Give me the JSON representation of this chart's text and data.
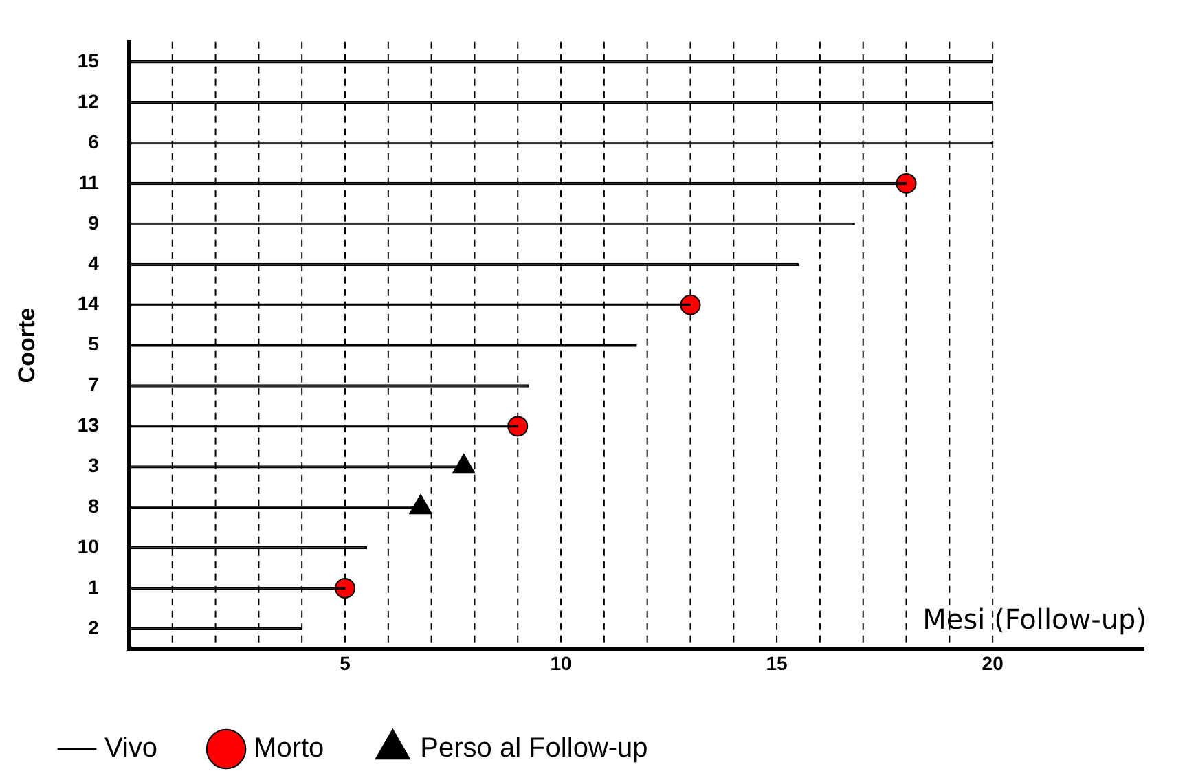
{
  "chart_data": {
    "type": "bar",
    "orientation": "horizontal",
    "ylabel": "Coorte",
    "xlabel": "Mesi (Follow-up)",
    "categories": [
      "15",
      "12",
      "6",
      "11",
      "9",
      "4",
      "14",
      "5",
      "7",
      "13",
      "3",
      "8",
      "10",
      "1",
      "2"
    ],
    "series": [
      {
        "name": "Vivo",
        "type": "bar",
        "color": "#000000",
        "values": [
          20,
          20,
          20,
          18,
          16.8,
          15.5,
          13,
          11.75,
          9.25,
          9,
          7.75,
          6.75,
          5.5,
          5,
          4
        ]
      },
      {
        "name": "Morto",
        "type": "scatter",
        "marker": "circle",
        "color": "#ff0000",
        "values": [
          null,
          null,
          null,
          18,
          null,
          null,
          13,
          null,
          null,
          9,
          null,
          null,
          null,
          5,
          null
        ]
      },
      {
        "name": "Perso al Follow-up",
        "type": "scatter",
        "marker": "triangle",
        "color": "#000000",
        "values": [
          null,
          null,
          null,
          null,
          null,
          null,
          null,
          null,
          null,
          null,
          7.75,
          6.75,
          null,
          null,
          null
        ]
      }
    ],
    "xlim": [
      0,
      23.5
    ],
    "xticks": [
      {
        "value": 1,
        "label": null
      },
      {
        "value": 2,
        "label": null
      },
      {
        "value": 3,
        "label": null
      },
      {
        "value": 4,
        "label": null
      },
      5,
      {
        "value": 6,
        "label": null
      },
      {
        "value": 7,
        "label": null
      },
      {
        "value": 8,
        "label": null
      },
      {
        "value": 9,
        "label": null
      },
      10,
      {
        "value": 11,
        "label": null
      },
      {
        "value": 12,
        "label": null
      },
      {
        "value": 13,
        "label": null
      },
      {
        "value": 14,
        "label": null
      },
      15,
      {
        "value": 16,
        "label": null
      },
      {
        "value": 17,
        "label": null
      },
      {
        "value": 18,
        "label": null
      },
      {
        "value": 19,
        "label": null
      },
      20
    ],
    "grid": "x",
    "legend": "bottom"
  }
}
